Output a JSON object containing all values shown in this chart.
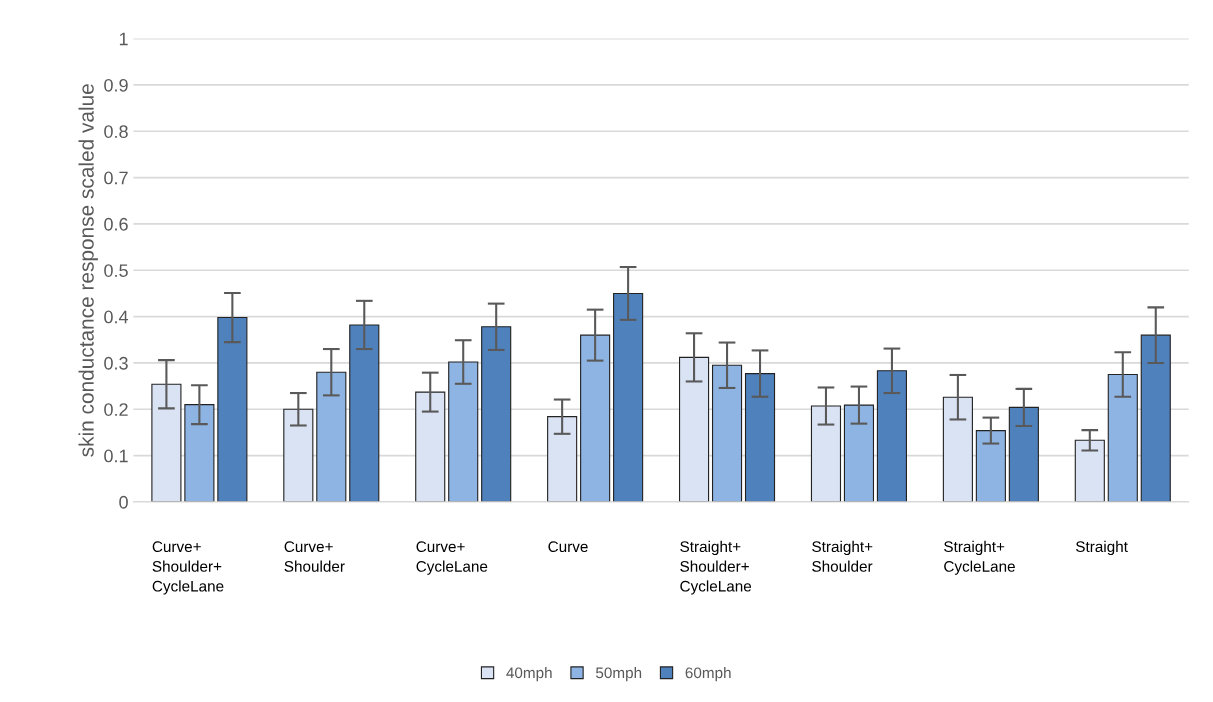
{
  "chart_data": {
    "type": "bar",
    "ylabel": "skin conductance response scaled value",
    "categories": [
      "Curve+\nShoulder+\nCycleLane",
      "Curve+\nShoulder",
      "Curve+\nCycleLane",
      "Curve",
      "Straight+\nShoulder+\nCycleLane",
      "Straight+\nShoulder",
      "Straight+\nCycleLane",
      "Straight"
    ],
    "series": [
      {
        "name": "40mph",
        "color": "#dae3f3",
        "values": [
          0.254,
          0.2,
          0.237,
          0.184,
          0.312,
          0.207,
          0.226,
          0.133
        ],
        "errors": [
          0.052,
          0.035,
          0.042,
          0.037,
          0.052,
          0.04,
          0.048,
          0.022
        ]
      },
      {
        "name": "50mph",
        "color": "#8eb4e3",
        "values": [
          0.21,
          0.28,
          0.302,
          0.36,
          0.295,
          0.209,
          0.154,
          0.275
        ],
        "errors": [
          0.042,
          0.05,
          0.047,
          0.055,
          0.049,
          0.04,
          0.028,
          0.048
        ]
      },
      {
        "name": "60mph",
        "color": "#4f81bd",
        "values": [
          0.398,
          0.382,
          0.378,
          0.45,
          0.277,
          0.283,
          0.204,
          0.36
        ],
        "errors": [
          0.053,
          0.052,
          0.05,
          0.057,
          0.05,
          0.048,
          0.04,
          0.06
        ]
      }
    ],
    "ylim": [
      0,
      1
    ],
    "yticks": [
      0,
      0.1,
      0.2,
      0.3,
      0.4,
      0.5,
      0.6,
      0.7,
      0.8,
      0.9,
      1
    ],
    "grid": "y",
    "legend": "bottom"
  }
}
